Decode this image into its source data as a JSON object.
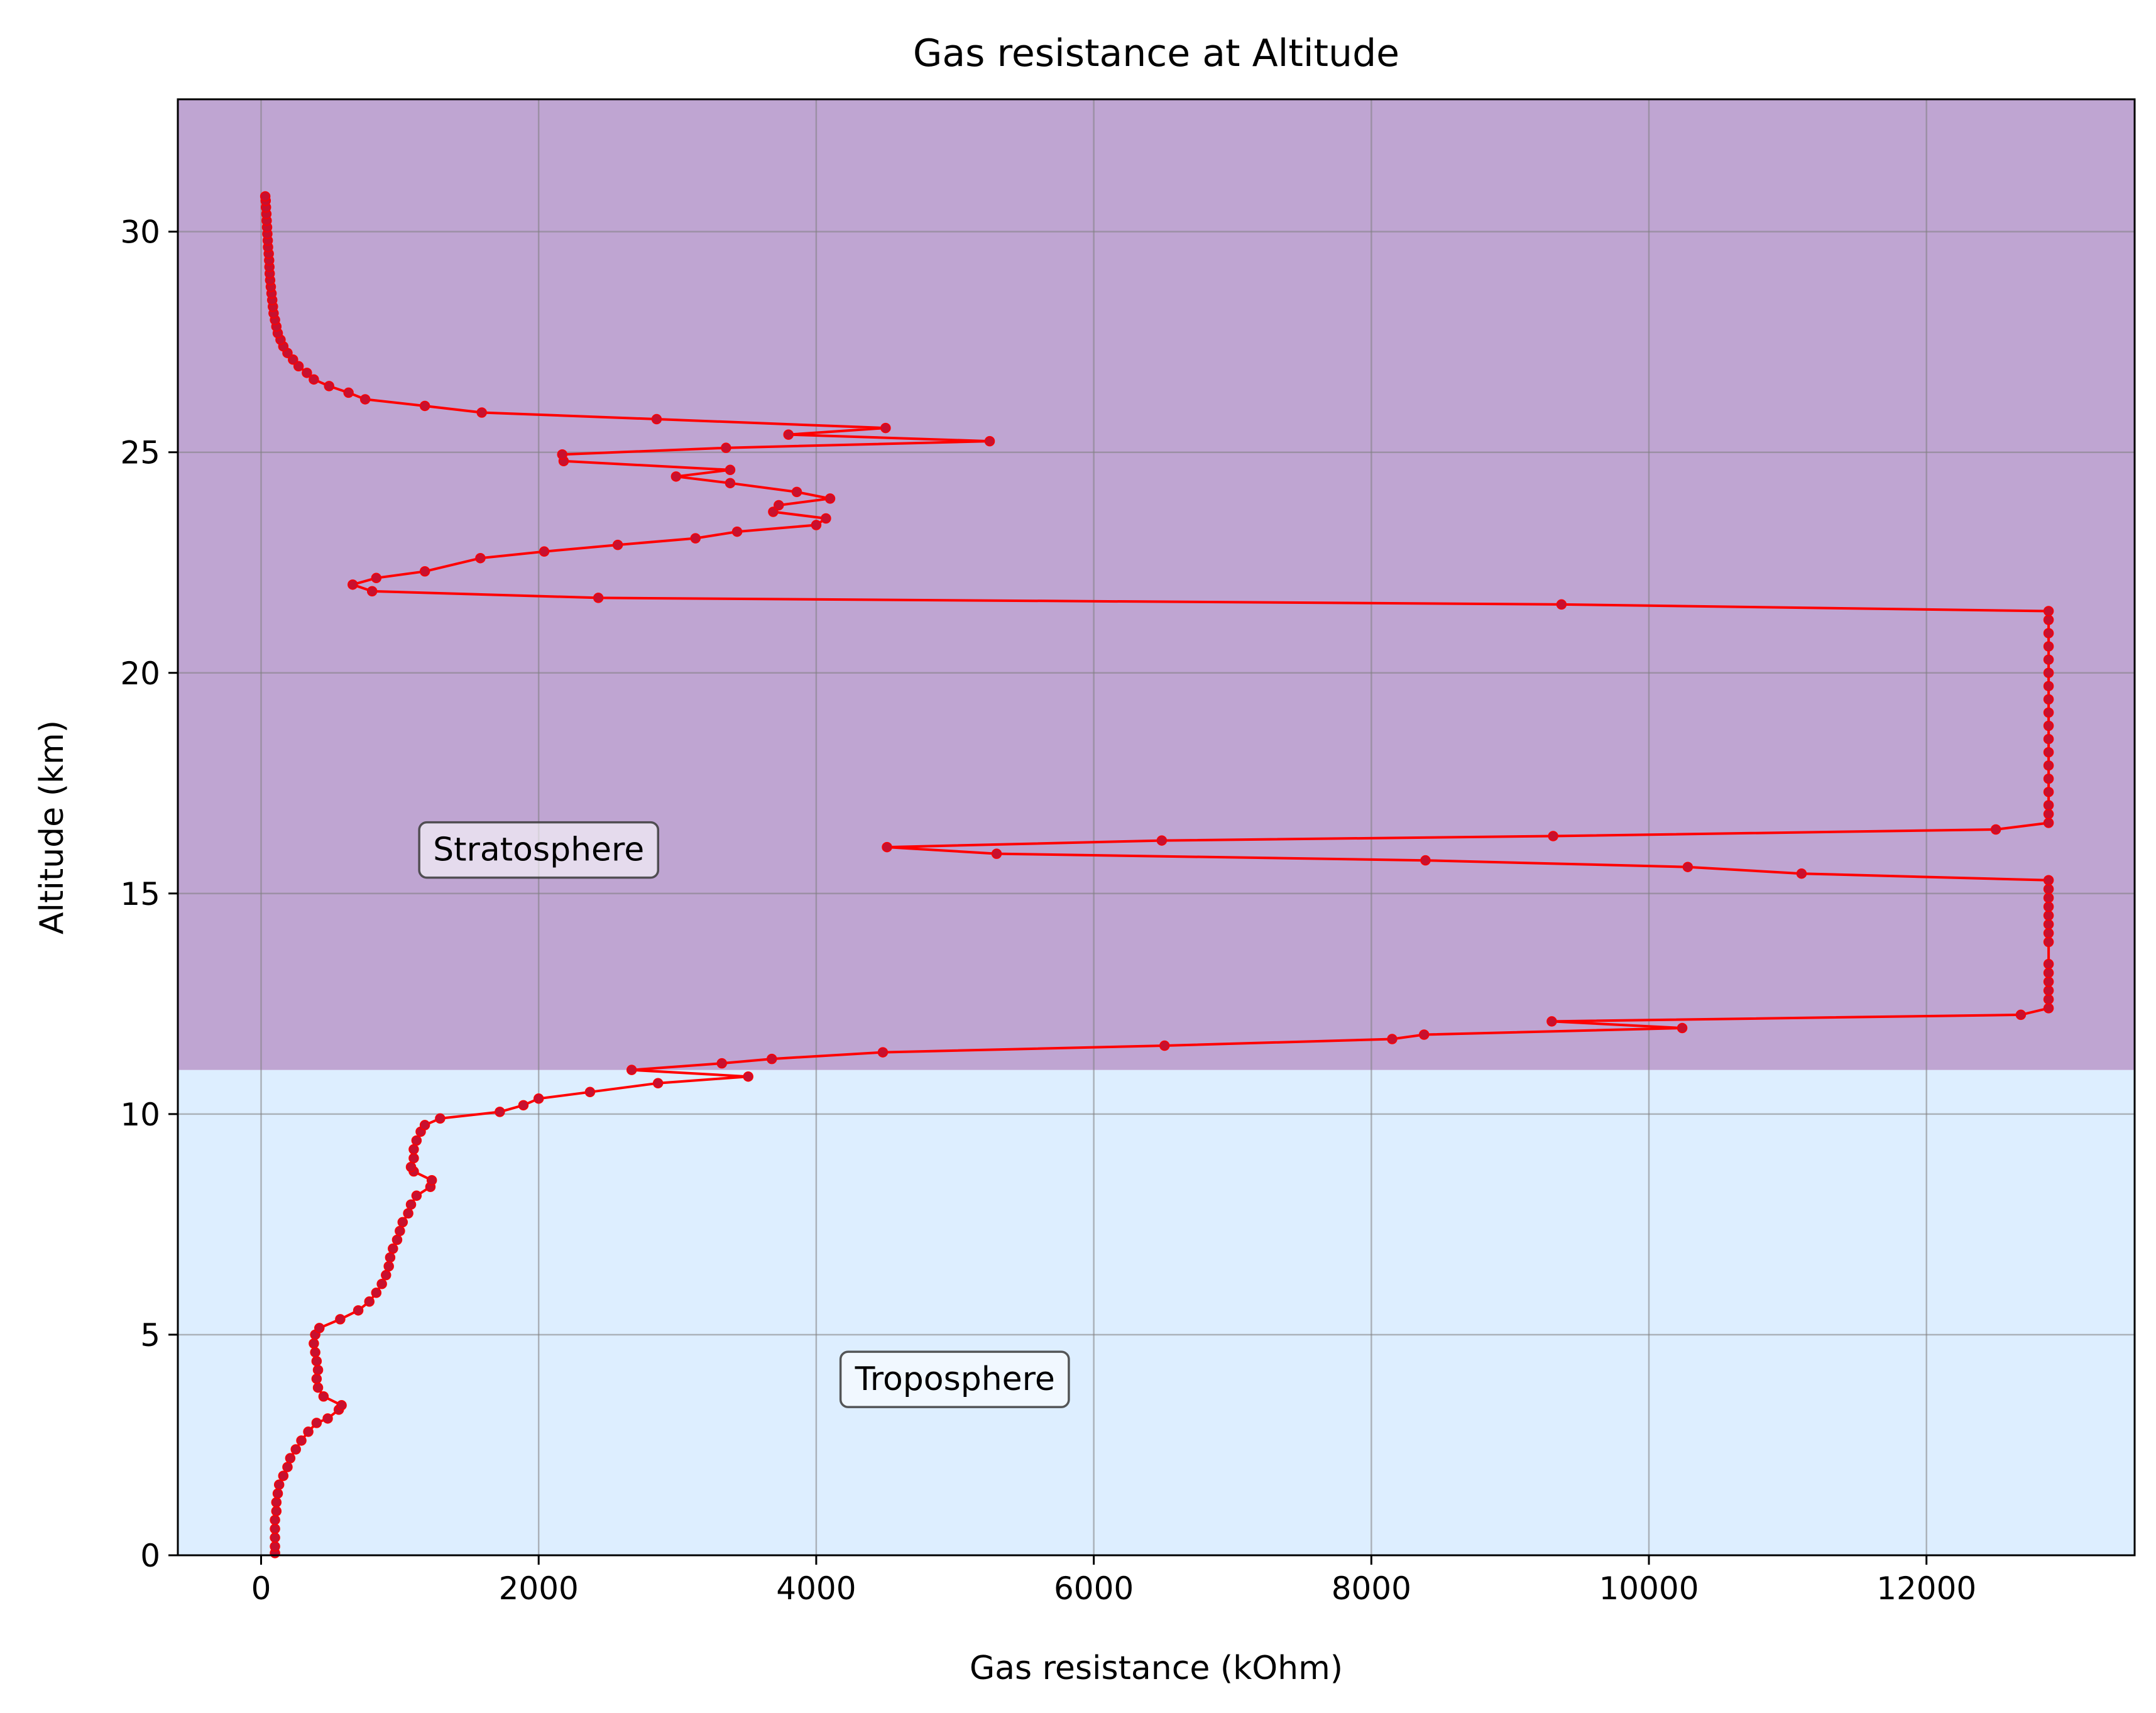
{
  "chart_data": {
    "type": "line",
    "title": "Gas resistance at Altitude",
    "xlabel": "Gas resistance (kOhm)",
    "ylabel": "Altitude (km)",
    "xlim": [
      -600,
      13500
    ],
    "ylim": [
      0,
      33
    ],
    "xticks": [
      0,
      2000,
      4000,
      6000,
      8000,
      10000,
      12000
    ],
    "yticks": [
      0,
      5,
      10,
      15,
      20,
      25,
      30
    ],
    "grid": true,
    "regions": [
      {
        "name": "Troposphere",
        "y_range": [
          0,
          11
        ],
        "color": "#ddeeff"
      },
      {
        "name": "Stratosphere",
        "y_range": [
          11,
          33
        ],
        "color": "#bfa5d2"
      }
    ],
    "annotations": [
      {
        "text": "Stratosphere",
        "x": 2000,
        "y": 16
      },
      {
        "text": "Troposphere",
        "x": 5000,
        "y": 4
      }
    ],
    "series": [
      {
        "color": "#ff0000",
        "marker_color": "#c8102e",
        "points": [
          [
            100,
            0.05
          ],
          [
            100,
            0.2
          ],
          [
            100,
            0.4
          ],
          [
            100,
            0.6
          ],
          [
            100,
            0.8
          ],
          [
            110,
            1.0
          ],
          [
            110,
            1.2
          ],
          [
            120,
            1.4
          ],
          [
            130,
            1.6
          ],
          [
            160,
            1.8
          ],
          [
            190,
            2.0
          ],
          [
            210,
            2.2
          ],
          [
            250,
            2.4
          ],
          [
            290,
            2.6
          ],
          [
            340,
            2.8
          ],
          [
            400,
            3.0
          ],
          [
            480,
            3.1
          ],
          [
            560,
            3.3
          ],
          [
            580,
            3.4
          ],
          [
            450,
            3.6
          ],
          [
            410,
            3.8
          ],
          [
            400,
            4.0
          ],
          [
            410,
            4.2
          ],
          [
            400,
            4.4
          ],
          [
            390,
            4.6
          ],
          [
            380,
            4.8
          ],
          [
            390,
            5.0
          ],
          [
            420,
            5.15
          ],
          [
            570,
            5.35
          ],
          [
            700,
            5.55
          ],
          [
            780,
            5.75
          ],
          [
            830,
            5.95
          ],
          [
            870,
            6.15
          ],
          [
            900,
            6.35
          ],
          [
            920,
            6.55
          ],
          [
            930,
            6.75
          ],
          [
            950,
            6.95
          ],
          [
            980,
            7.15
          ],
          [
            1000,
            7.35
          ],
          [
            1020,
            7.55
          ],
          [
            1060,
            7.75
          ],
          [
            1080,
            7.95
          ],
          [
            1120,
            8.15
          ],
          [
            1220,
            8.35
          ],
          [
            1230,
            8.5
          ],
          [
            1100,
            8.7
          ],
          [
            1080,
            8.8
          ],
          [
            1100,
            9.0
          ],
          [
            1100,
            9.2
          ],
          [
            1120,
            9.4
          ],
          [
            1150,
            9.6
          ],
          [
            1180,
            9.75
          ],
          [
            1290,
            9.9
          ],
          [
            1720,
            10.05
          ],
          [
            1890,
            10.2
          ],
          [
            2000,
            10.35
          ],
          [
            2370,
            10.5
          ],
          [
            2860,
            10.7
          ],
          [
            3510,
            10.85
          ],
          [
            2670,
            11.0
          ],
          [
            3320,
            11.15
          ],
          [
            3680,
            11.25
          ],
          [
            4480,
            11.4
          ],
          [
            6510,
            11.55
          ],
          [
            8150,
            11.7
          ],
          [
            8380,
            11.8
          ],
          [
            10240,
            11.95
          ],
          [
            9300,
            12.1
          ],
          [
            12680,
            12.25
          ],
          [
            12880,
            12.4
          ],
          [
            12880,
            12.6
          ],
          [
            12880,
            12.8
          ],
          [
            12880,
            13.0
          ],
          [
            12880,
            13.2
          ],
          [
            12880,
            13.4
          ],
          [
            12880,
            13.9
          ],
          [
            12880,
            14.1
          ],
          [
            12880,
            14.3
          ],
          [
            12880,
            14.5
          ],
          [
            12880,
            14.7
          ],
          [
            12880,
            14.9
          ],
          [
            12880,
            15.1
          ],
          [
            12880,
            15.3
          ],
          [
            11100,
            15.45
          ],
          [
            10280,
            15.6
          ],
          [
            8390,
            15.75
          ],
          [
            5300,
            15.9
          ],
          [
            4510,
            16.05
          ],
          [
            6490,
            16.2
          ],
          [
            9310,
            16.3
          ],
          [
            12500,
            16.45
          ],
          [
            12880,
            16.6
          ],
          [
            12880,
            16.8
          ],
          [
            12880,
            17.0
          ],
          [
            12880,
            17.3
          ],
          [
            12880,
            17.6
          ],
          [
            12880,
            17.9
          ],
          [
            12880,
            18.2
          ],
          [
            12880,
            18.5
          ],
          [
            12880,
            18.8
          ],
          [
            12880,
            19.1
          ],
          [
            12880,
            19.4
          ],
          [
            12880,
            19.7
          ],
          [
            12880,
            20.0
          ],
          [
            12880,
            20.3
          ],
          [
            12880,
            20.6
          ],
          [
            12880,
            20.9
          ],
          [
            12880,
            21.2
          ],
          [
            12880,
            21.4
          ],
          [
            9370,
            21.55
          ],
          [
            2430,
            21.7
          ],
          [
            800,
            21.85
          ],
          [
            660,
            22.0
          ],
          [
            830,
            22.15
          ],
          [
            1180,
            22.3
          ],
          [
            1580,
            22.6
          ],
          [
            2040,
            22.75
          ],
          [
            2570,
            22.9
          ],
          [
            3130,
            23.05
          ],
          [
            3430,
            23.2
          ],
          [
            4000,
            23.35
          ],
          [
            4070,
            23.5
          ],
          [
            3690,
            23.65
          ],
          [
            3730,
            23.8
          ],
          [
            4100,
            23.95
          ],
          [
            3860,
            24.1
          ],
          [
            3380,
            24.3
          ],
          [
            2990,
            24.45
          ],
          [
            3380,
            24.6
          ],
          [
            2180,
            24.8
          ],
          [
            2170,
            24.95
          ],
          [
            3350,
            25.1
          ],
          [
            5250,
            25.25
          ],
          [
            3800,
            25.4
          ],
          [
            4500,
            25.55
          ],
          [
            2850,
            25.75
          ],
          [
            1590,
            25.9
          ],
          [
            1180,
            26.05
          ],
          [
            750,
            26.2
          ],
          [
            630,
            26.35
          ],
          [
            490,
            26.5
          ],
          [
            380,
            26.65
          ],
          [
            330,
            26.8
          ],
          [
            270,
            26.95
          ],
          [
            230,
            27.1
          ],
          [
            190,
            27.25
          ],
          [
            160,
            27.4
          ],
          [
            140,
            27.55
          ],
          [
            120,
            27.7
          ],
          [
            110,
            27.85
          ],
          [
            100,
            28.0
          ],
          [
            90,
            28.15
          ],
          [
            85,
            28.3
          ],
          [
            80,
            28.45
          ],
          [
            75,
            28.6
          ],
          [
            70,
            28.75
          ],
          [
            65,
            28.9
          ],
          [
            62,
            29.05
          ],
          [
            60,
            29.2
          ],
          [
            58,
            29.35
          ],
          [
            55,
            29.5
          ],
          [
            50,
            29.65
          ],
          [
            48,
            29.8
          ],
          [
            45,
            29.95
          ],
          [
            43,
            30.1
          ],
          [
            40,
            30.25
          ],
          [
            38,
            30.4
          ],
          [
            35,
            30.55
          ],
          [
            33,
            30.7
          ],
          [
            30,
            30.8
          ]
        ]
      }
    ]
  }
}
